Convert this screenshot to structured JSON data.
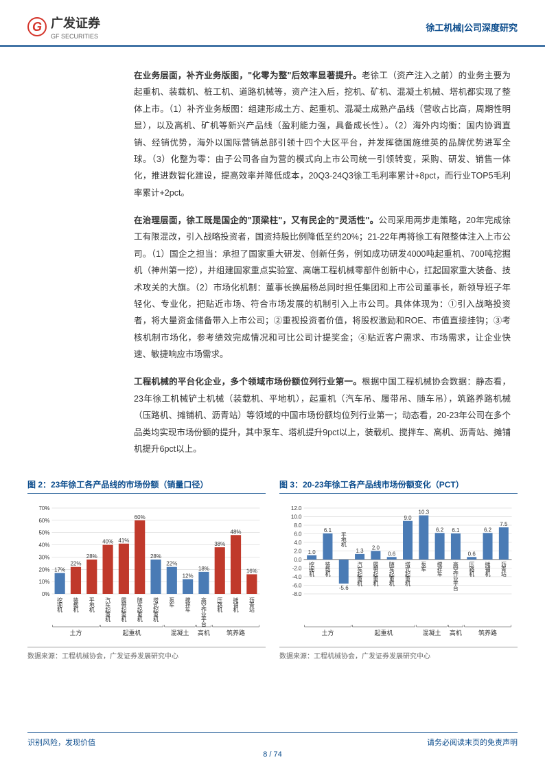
{
  "header": {
    "logo_cn": "广发证券",
    "logo_en": "GF SECURITIES",
    "right_text": "徐工机械|公司深度研究"
  },
  "paragraphs": {
    "p1": "在业务层面，补齐业务版图，\"化零为整\"后效率显著提升。",
    "p1_body": "老徐工（资产注入之前）的业务主要为起重机、装载机、桩工机、道路机械等，资产注入后，挖机、矿机、混凝土机械、塔机都实现了整体上市。（1）补齐业务版图：组建形成土方、起重机、混凝土成熟产品线（营收占比高，周期性明显），以及高机、矿机等新兴产品线（盈利能力强，具备成长性）。（2）海外内均衡：国内协调直销、经销优势，海外以国际营销总部引领十四个大区平台，并发挥德国施维英的品牌优势进军全球。（3）化整为零：由子公司各自为营的模式向上市公司统一引领转变，采购、研发、销售一体化，推进数智化建设，提高效率并降低成本，20Q3-24Q3徐工毛利率累计+8pct，而行业TOP5毛利率累计+2pct。",
    "p2": "在治理层面，徐工既是国企的\"顶梁柱\"，又有民企的\"灵活性\"。",
    "p2_body": "公司采用两步走策略，20年完成徐工有限混改，引入战略投资者，国资持股比例降低至约20%；21-22年再将徐工有限整体注入上市公司。（1）国企之担当：承担了国家重大研发、创新任务，例如成功研发4000吨起重机、700吨挖掘机（神州第一挖），并组建国家重点实验室、高端工程机械零部件创新中心，扛起国家重大装备、技术攻关的大旗。（2）市场化机制：董事长换届杨总同时担任集团和上市公司董事长，新领导班子年轻化、专业化，把贴近市场、符合市场发展的机制引入上市公司。具体体现为：①引入战略投资者，将大量资金储备带入上市公司；②重视投资者价值，将股权激励和ROE、市值直接挂钩；③考核机制市场化，参考绩效完成情况和可比公司计提奖金；④贴近客户需求、市场需求，让企业快速、敏捷响应市场需求。",
    "p3": "工程机械的平台化企业，多个领域市场份额位列行业第一。",
    "p3_body": "根据中国工程机械协会数据：静态看，23年徐工机械铲土机械（装载机、平地机），起重机（汽车吊、履带吊、随车吊），筑路养路机械（压路机、摊铺机、沥青站）等领域的中国市场份额均位列行业第一；动态看，20-23年公司在多个品类均实现市场份额的提升，其中泵车、塔机提升9pct以上，装载机、搅拌车、高机、沥青站、摊铺机提升6pct以上。"
  },
  "chart2": {
    "title": "图 2：23年徐工各产品线的市场份额（销量口径）",
    "source": "数据来源：工程机械协会，广发证券发展研究中心",
    "ylim": [
      0,
      70
    ],
    "ytick_step": 10,
    "bar_color_rank1": "#c0392b",
    "bar_color_other": "#4a7bb5",
    "grid_color": "#cccccc",
    "items": [
      {
        "label": "挖掘机",
        "value": 17,
        "rank1": false
      },
      {
        "label": "装载机",
        "value": 22,
        "rank1": true
      },
      {
        "label": "平地机",
        "value": 28,
        "rank1": true
      },
      {
        "label": "汽车起重机",
        "value": 40,
        "rank1": true
      },
      {
        "label": "履带起重机",
        "value": 41,
        "rank1": true
      },
      {
        "label": "随车起重机",
        "value": 60,
        "rank1": true
      },
      {
        "label": "塔式起重机",
        "value": 28,
        "rank1": false
      },
      {
        "label": "泵车",
        "value": 22,
        "rank1": false
      },
      {
        "label": "搅拌车",
        "value": 12,
        "rank1": false
      },
      {
        "label": "高空作业平台",
        "value": 18,
        "rank1": false
      },
      {
        "label": "压路机",
        "value": 38,
        "rank1": true
      },
      {
        "label": "摊铺机",
        "value": 48,
        "rank1": true
      },
      {
        "label": "沥青站",
        "value": 16,
        "rank1": true
      }
    ],
    "groups": [
      {
        "label": "土方",
        "span": [
          0,
          2
        ]
      },
      {
        "label": "起重机",
        "span": [
          3,
          6
        ]
      },
      {
        "label": "混凝土",
        "span": [
          7,
          8
        ]
      },
      {
        "label": "高机",
        "span": [
          9,
          9
        ]
      },
      {
        "label": "筑养路",
        "span": [
          10,
          12
        ]
      }
    ]
  },
  "chart3": {
    "title": "图 3：20-23年徐工各产品线市场份额变化（PCT）",
    "source": "数据来源：工程机械协会，广发证券发展研究中心",
    "ylim": [
      -8,
      12
    ],
    "ytick_step": 2,
    "bar_color": "#4a7bb5",
    "grid_color": "#cccccc",
    "items": [
      {
        "label": "挖掘机",
        "value": 1.0
      },
      {
        "label": "装载机",
        "value": 6.1
      },
      {
        "label": "平地机",
        "value": -5.6
      },
      {
        "label": "汽车起重机",
        "value": 1.3
      },
      {
        "label": "履带起重机",
        "value": 2.0
      },
      {
        "label": "随车起重机",
        "value": 0.6
      },
      {
        "label": "塔式起重机",
        "value": 9.0
      },
      {
        "label": "泵车",
        "value": 10.3
      },
      {
        "label": "搅拌车",
        "value": 6.2
      },
      {
        "label": "高空作业平台",
        "value": 6.1
      },
      {
        "label": "压路机",
        "value": 0.6
      },
      {
        "label": "摊铺机",
        "value": 6.2
      },
      {
        "label": "沥青站",
        "value": 7.5
      }
    ],
    "groups": [
      {
        "label": "土方",
        "span": [
          0,
          2
        ]
      },
      {
        "label": "起重机",
        "span": [
          3,
          6
        ]
      },
      {
        "label": "混凝土",
        "span": [
          7,
          8
        ]
      },
      {
        "label": "高机",
        "span": [
          9,
          9
        ]
      },
      {
        "label": "筑养路",
        "span": [
          10,
          12
        ]
      }
    ]
  },
  "footer": {
    "left": "识别风险，发现价值",
    "right": "请务必阅读末页的免责声明",
    "page": "8 / 74"
  }
}
